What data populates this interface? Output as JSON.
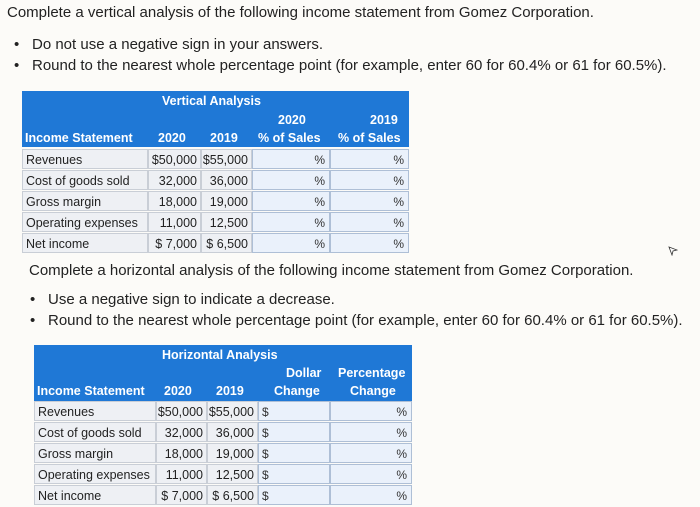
{
  "vertical": {
    "instruction": "Complete a vertical analysis of the following income statement from Gomez Corporation.",
    "bullets": [
      "Do not use a negative sign in your answers.",
      "Round to the nearest whole percentage point (for example, enter 60 for 60.4% or 61 for 60.5%)."
    ],
    "table": {
      "band_title": "Vertical Analysis",
      "col_income_statement": "Income Statement",
      "col_2020": "2020",
      "col_2019": "2019",
      "col_pct2020_year": "2020",
      "col_pct2020_label": "% of Sales",
      "col_pct2019_year": "2019",
      "col_pct2019_label": "% of Sales",
      "pct_symbol": "%",
      "rows": [
        {
          "label": "Revenues",
          "v2020": "$50,000",
          "v2019": "$55,000"
        },
        {
          "label": "Cost of goods sold",
          "v2020": "32,000",
          "v2019": "36,000"
        },
        {
          "label": "Gross margin",
          "v2020": "18,000",
          "v2019": "19,000"
        },
        {
          "label": "Operating expenses",
          "v2020": "11,000",
          "v2019": "12,500"
        },
        {
          "label": "Net income",
          "v2020": "$ 7,000",
          "v2019": "$ 6,500"
        }
      ]
    }
  },
  "horizontal": {
    "instruction": "Complete a horizontal analysis of the following income statement from Gomez Corporation.",
    "bullets": [
      "Use a negative sign to indicate a decrease.",
      "Round to the nearest whole percentage point (for example, enter 60 for 60.4% or 61 for 60.5%)."
    ],
    "table": {
      "band_title": "Horizontal Analysis",
      "col_income_statement": "Income Statement",
      "col_2020": "2020",
      "col_2019": "2019",
      "col_dollar_1": "Dollar",
      "col_dollar_2": "Change",
      "col_pct_1": "Percentage",
      "col_pct_2": "Change",
      "dollar_symbol": "$",
      "pct_symbol": "%",
      "rows": [
        {
          "label": "Revenues",
          "v2020": "$50,000",
          "v2019": "$55,000"
        },
        {
          "label": "Cost of goods sold",
          "v2020": "32,000",
          "v2019": "36,000"
        },
        {
          "label": "Gross margin",
          "v2020": "18,000",
          "v2019": "19,000"
        },
        {
          "label": "Operating expenses",
          "v2020": "11,000",
          "v2019": "12,500"
        },
        {
          "label": "Net income",
          "v2020": "$ 7,000",
          "v2019": "$ 6,500"
        }
      ]
    }
  },
  "icons": {
    "bullet": "bullet-dot-icon",
    "cursor": "mouse-cursor-icon"
  }
}
